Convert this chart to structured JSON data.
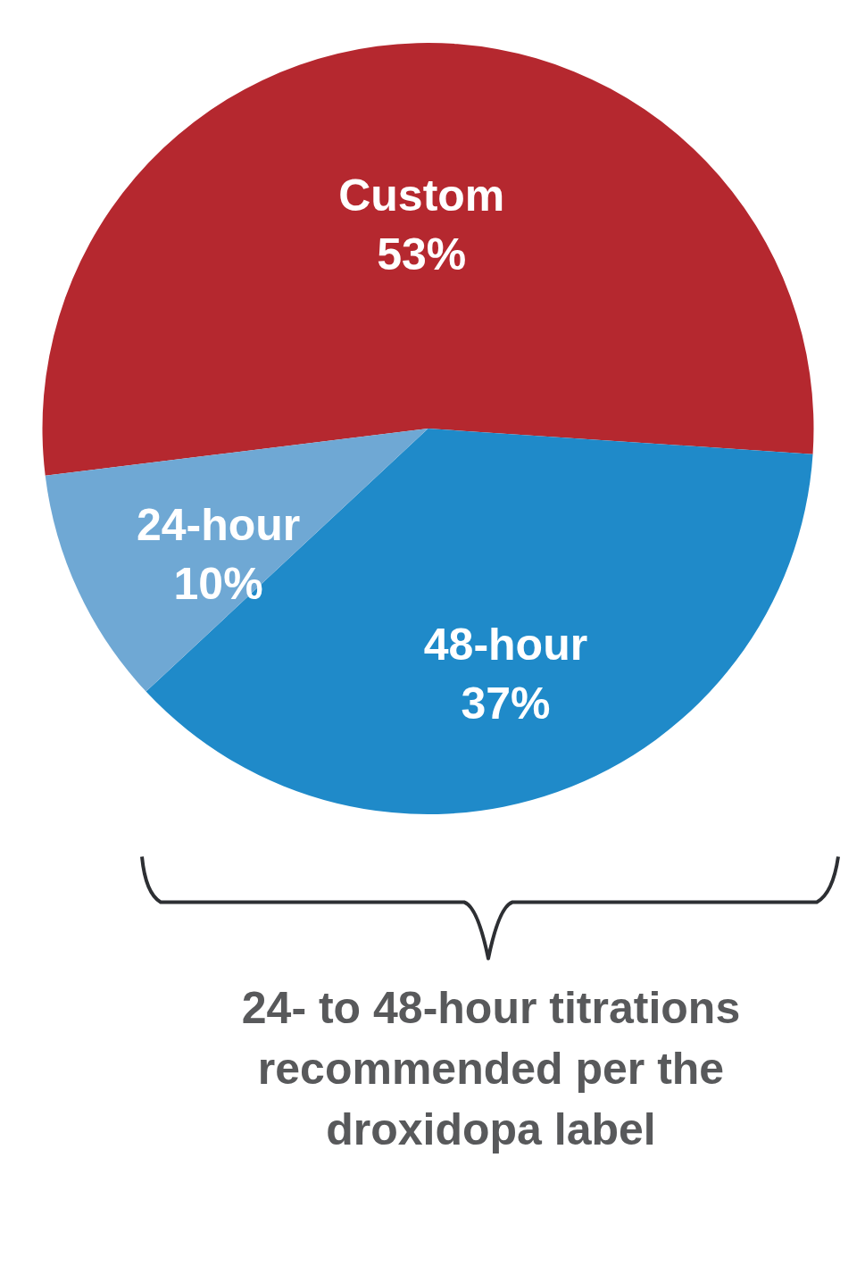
{
  "chart_data": {
    "type": "pie",
    "categories": [
      "Custom",
      "48-hour",
      "24-hour"
    ],
    "values": [
      53,
      37,
      10
    ],
    "value_labels": [
      "53%",
      "37%",
      "10%"
    ],
    "colors": [
      "#b5282f",
      "#1f8ac9",
      "#6fa8d4"
    ],
    "legend": false,
    "annotations": [
      "24- to 48-hour titrations recommended per the droxidopa label"
    ]
  }
}
